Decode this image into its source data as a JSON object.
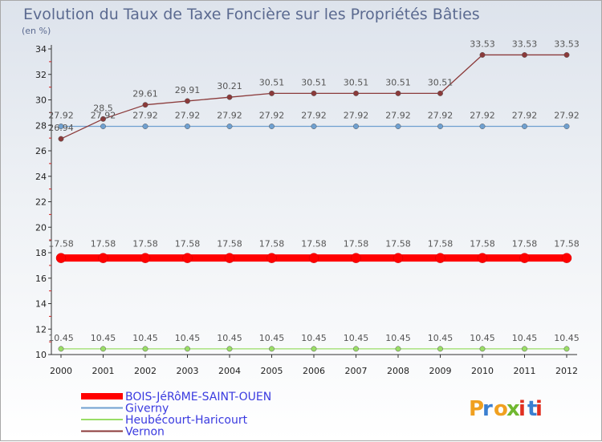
{
  "chart_data": {
    "type": "line",
    "title": "Evolution du Taux de Taxe Foncière sur les Propriétés Bâties",
    "subtitle": "(en %)",
    "xlabel": "",
    "ylabel": "",
    "ylim": [
      10,
      34
    ],
    "yticks": [
      10,
      12,
      14,
      16,
      18,
      20,
      22,
      24,
      26,
      28,
      30,
      32,
      34
    ],
    "categories": [
      "2000",
      "2001",
      "2002",
      "2003",
      "2004",
      "2005",
      "2006",
      "2007",
      "2008",
      "2009",
      "2010",
      "2011",
      "2012"
    ],
    "series": [
      {
        "name": "BOIS-JéRôME-SAINT-OUEN",
        "color": "#ff0000",
        "values": [
          17.58,
          17.58,
          17.58,
          17.58,
          17.58,
          17.58,
          17.58,
          17.58,
          17.58,
          17.58,
          17.58,
          17.58,
          17.58
        ],
        "labels": [
          "17.58",
          "17.58",
          "17.58",
          "17.58",
          "17.58",
          "17.58",
          "17.58",
          "17.58",
          "17.58",
          "17.58",
          "17.58",
          "17.58",
          "17.58"
        ]
      },
      {
        "name": "Giverny",
        "color": "#6fa0d0",
        "values": [
          27.92,
          27.92,
          27.92,
          27.92,
          27.92,
          27.92,
          27.92,
          27.92,
          27.92,
          27.92,
          27.92,
          27.92,
          27.92
        ],
        "labels": [
          "27.92",
          "27.92",
          "27.92",
          "27.92",
          "27.92",
          "27.92",
          "27.92",
          "27.92",
          "27.92",
          "27.92",
          "27.92",
          "27.92",
          "27.92"
        ]
      },
      {
        "name": "Heubécourt-Haricourt",
        "color": "#99dd66",
        "values": [
          10.45,
          10.45,
          10.45,
          10.45,
          10.45,
          10.45,
          10.45,
          10.45,
          10.45,
          10.45,
          10.45,
          10.45,
          10.45
        ],
        "labels": [
          "10.45",
          "10.45",
          "10.45",
          "10.45",
          "10.45",
          "10.45",
          "10.45",
          "10.45",
          "10.45",
          "10.45",
          "10.45",
          "10.45",
          "10.45"
        ]
      },
      {
        "name": "Vernon",
        "color": "#8b3a3a",
        "values": [
          26.94,
          28.5,
          29.61,
          29.91,
          30.21,
          30.51,
          30.51,
          30.51,
          30.51,
          30.51,
          33.53,
          33.53,
          33.53
        ],
        "labels": [
          "26.94",
          "28.5",
          "29.61",
          "29.91",
          "30.21",
          "30.51",
          "30.51",
          "30.51",
          "30.51",
          "30.51",
          "33.53",
          "33.53",
          "33.53"
        ]
      }
    ],
    "legend": "bottom-left",
    "grid": false
  },
  "logo": {
    "text": "Proxiti",
    "colors": [
      "#f0a020",
      "#3a7fd0",
      "#f0a020",
      "#70b830",
      "#e03020",
      "#3a7fd0",
      "#e03020"
    ]
  }
}
